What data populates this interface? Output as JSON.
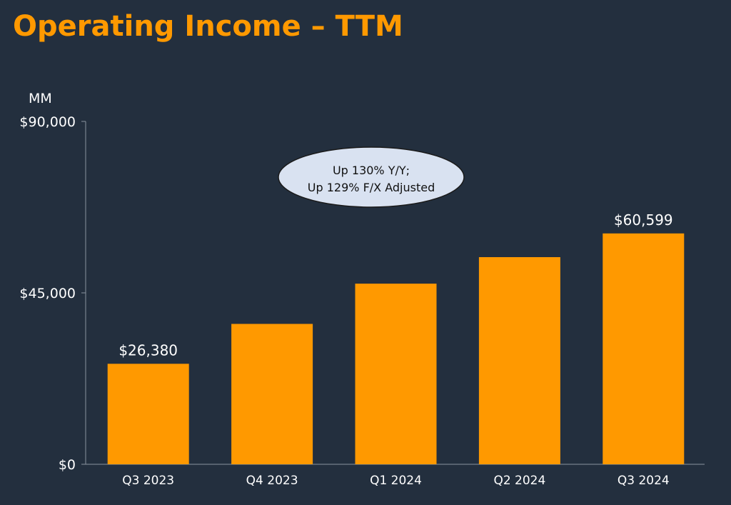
{
  "chart_data": {
    "type": "bar",
    "title": "Operating Income – TTM",
    "ylabel": "MM",
    "xlabel": "",
    "categories": [
      "Q3 2023",
      "Q4 2023",
      "Q1 2024",
      "Q2 2024",
      "Q3 2024"
    ],
    "values": [
      26380,
      36852,
      47415,
      54376,
      60599
    ],
    "data_labels": [
      "$26,380",
      null,
      null,
      null,
      "$60,599"
    ],
    "ylim": [
      0,
      90000
    ],
    "yticks": [
      0,
      45000,
      90000
    ],
    "ytick_labels": [
      "$0",
      "$45,000",
      "$90,000"
    ],
    "grid": false,
    "annotation": [
      "Up 130% Y/Y;",
      "Up 129% F/X Adjusted"
    ],
    "colors": {
      "bar": "#ff9900",
      "background": "#232f3e",
      "title": "#ff9900",
      "annotation_fill": "#d9e2f1"
    }
  }
}
